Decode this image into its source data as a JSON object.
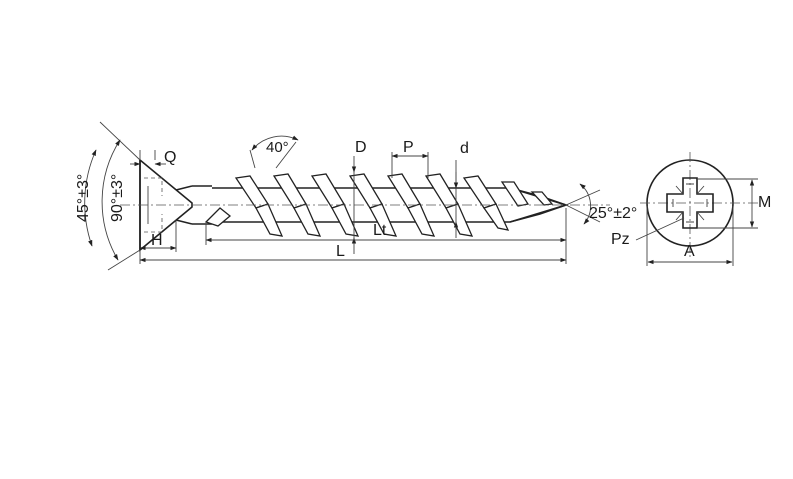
{
  "labels": {
    "Q": "Q",
    "H": "H",
    "angle_45": "45°±3°",
    "angle_90": "90°±3°",
    "angle_40": "40°",
    "D": "D",
    "P": "P",
    "d": "d",
    "Lt": "Lt",
    "L": "L",
    "angle_25": "25°±2°",
    "M": "M",
    "Pz": "Pz",
    "A": "A"
  }
}
